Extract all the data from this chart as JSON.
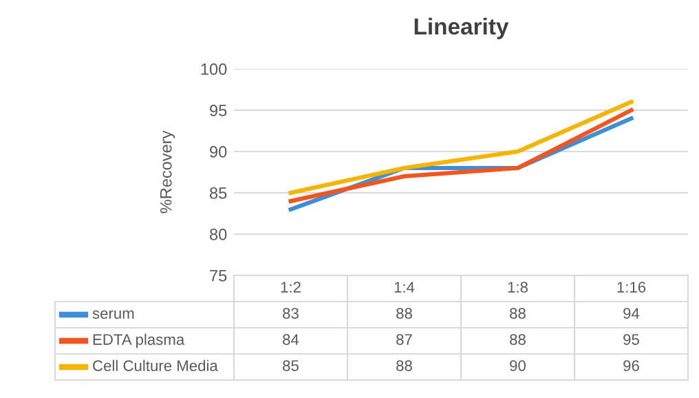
{
  "chart_data": {
    "type": "line",
    "title": "Linearity",
    "ylabel": "%Recovery",
    "categories": [
      "1:2",
      "1:4",
      "1:8",
      "1:16"
    ],
    "series": [
      {
        "name": "serum",
        "color": "#3f8fd8",
        "values": [
          83,
          88,
          88,
          94
        ]
      },
      {
        "name": "EDTA plasma",
        "color": "#f2551f",
        "values": [
          84,
          87,
          88,
          95
        ]
      },
      {
        "name": "Cell Culture Media",
        "color": "#f5b400",
        "values": [
          85,
          88,
          90,
          96
        ]
      }
    ],
    "ylim": [
      75,
      100
    ],
    "yticks": [
      75,
      80,
      85,
      90,
      95,
      100
    ],
    "grid": "y",
    "data_labels": true,
    "legend": "bottom",
    "marker": "none",
    "line_style": "solid"
  }
}
